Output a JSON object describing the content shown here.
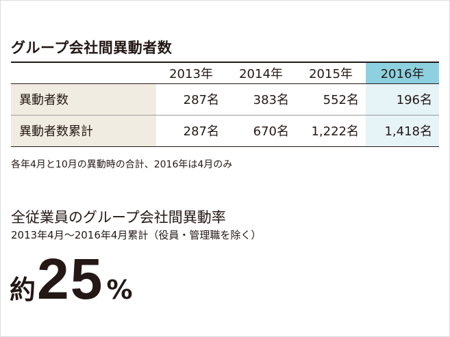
{
  "table": {
    "title": "グループ会社間異動者数",
    "years": [
      "2013年",
      "2014年",
      "2015年",
      "2016年"
    ],
    "rows": [
      {
        "label": "異動者数",
        "values": [
          "287名",
          "383名",
          "552名",
          "196名"
        ]
      },
      {
        "label": "異動者数累計",
        "values": [
          "287名",
          "670名",
          "1,222名",
          "1,418名"
        ]
      }
    ],
    "note": "各年4月と10月の異動時の合計、2016年は4月のみ"
  },
  "rate": {
    "title": "全従業員のグループ会社間異動率",
    "subtitle": "2013年4月〜2016年4月累計（役員・管理職を除く）",
    "prefix": "約",
    "value": "25",
    "unit": "%"
  },
  "colors": {
    "highlight_header": "#8dd1e0",
    "highlight_cell": "#e6f3f7",
    "label_bg": "#f1ece1",
    "text": "#231815"
  }
}
